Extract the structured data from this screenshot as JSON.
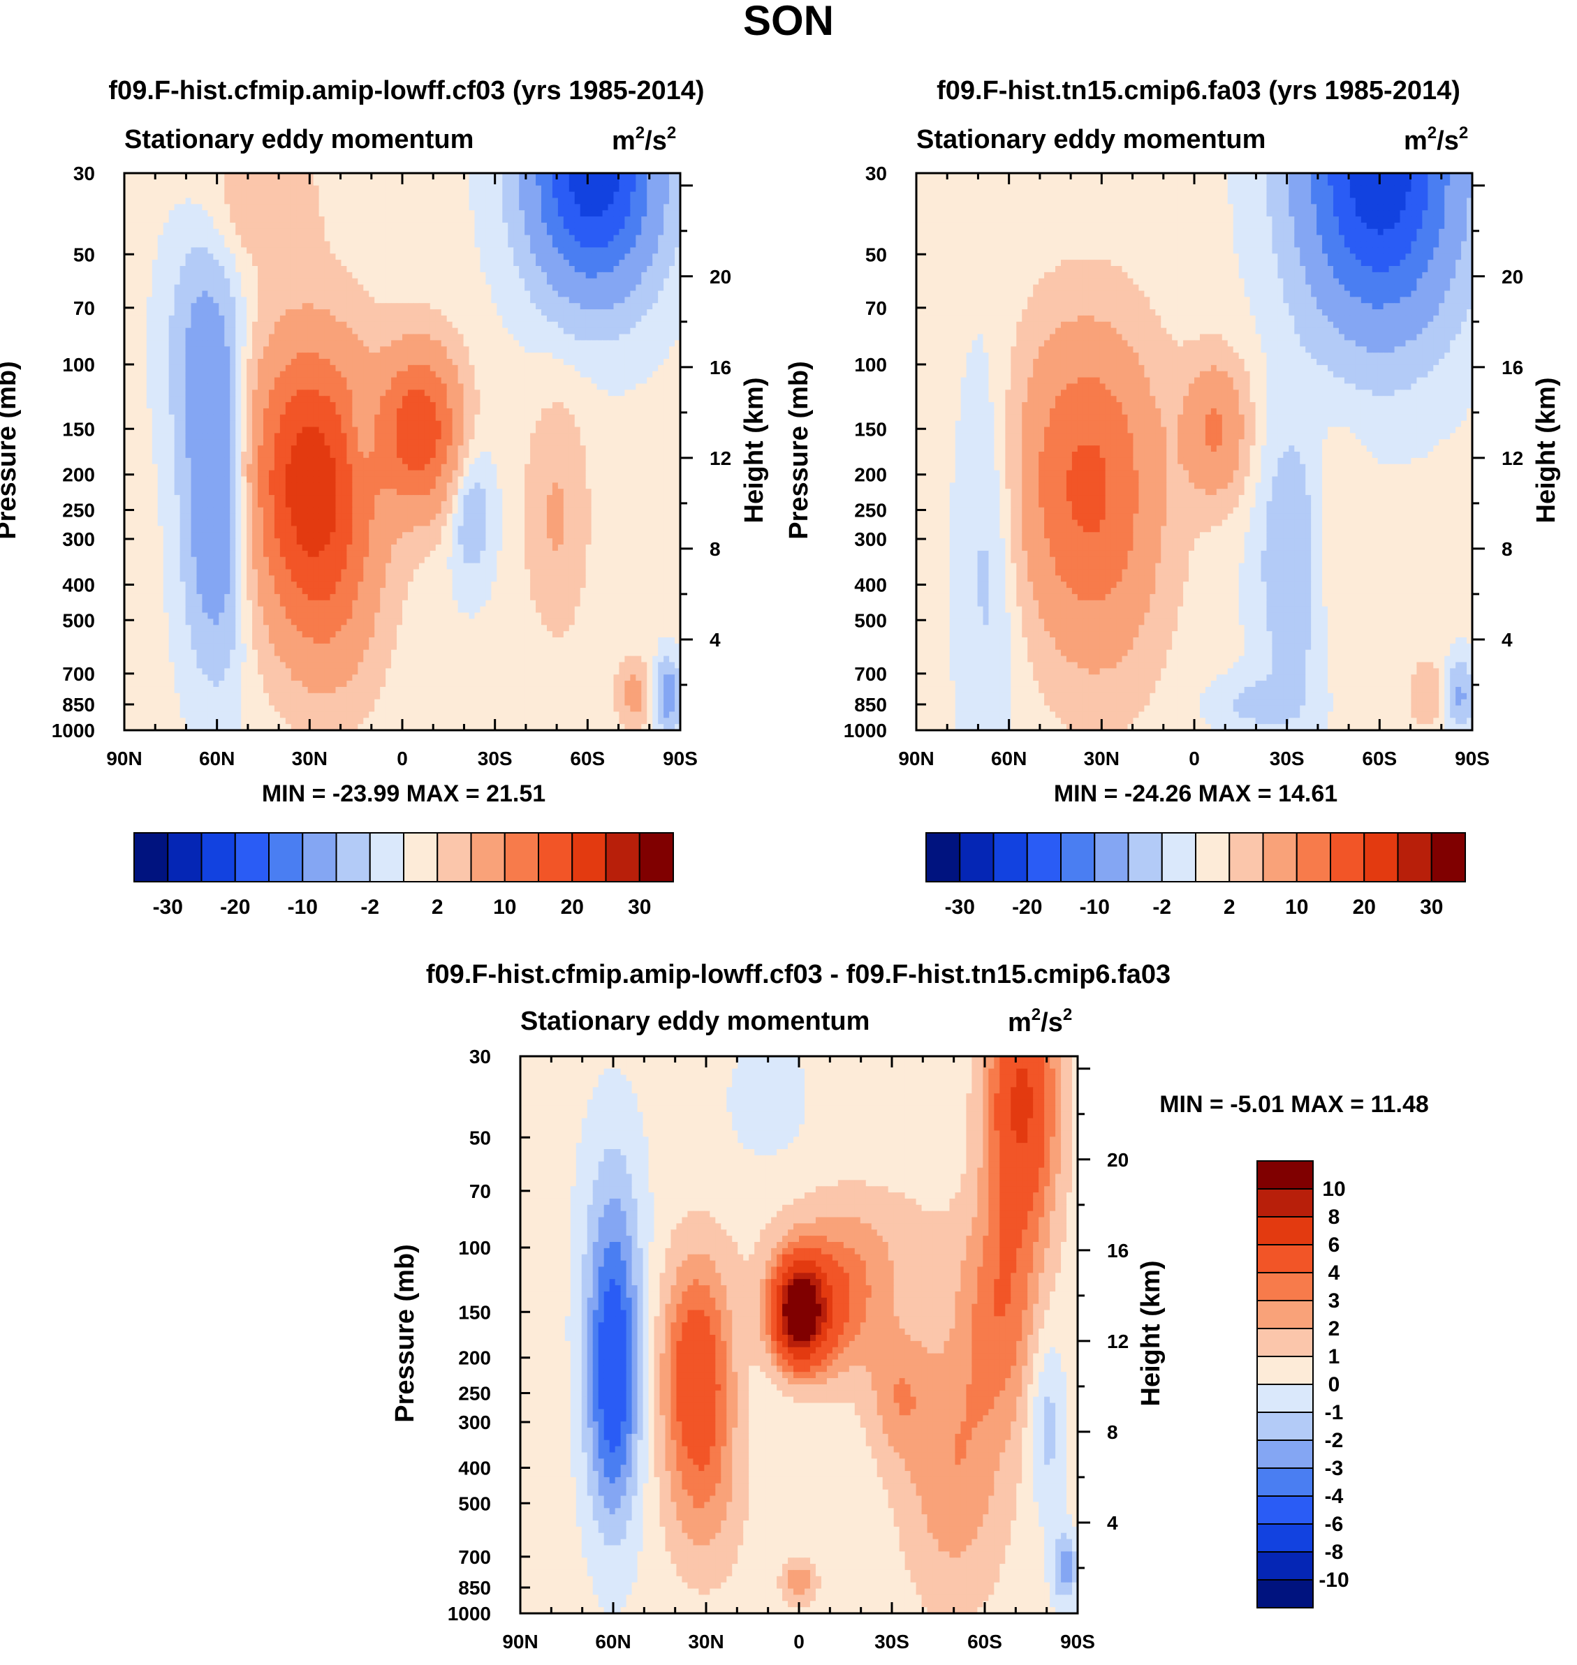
{
  "figure_title": "SON",
  "panel_subtitle": "Stationary eddy momentum",
  "units": {
    "base": "m",
    "sup1": "2",
    "mid": "/s",
    "sup2": "2"
  },
  "colors": {
    "-8": "#00137f",
    "-7": "#0526b5",
    "-6": "#1242e0",
    "-5": "#2a5cf5",
    "-4": "#4a7ef2",
    "-3": "#84a6f3",
    "-2": "#b3cbf7",
    "-1": "#dae8fb",
    "1": "#fdebd8",
    "2": "#fbc6ab",
    "3": "#f9a279",
    "4": "#f77b4b",
    "5": "#f25527",
    "6": "#e33a10",
    "7": "#b81f0a",
    "8": "#800000"
  },
  "chart_data": [
    {
      "id": "p1",
      "type": "contour-fill",
      "title": "f09.F-hist.cfmip.amip-lowff.cf03 (yrs 1985-2014)",
      "subtitle": "Stationary eddy momentum",
      "ylabel": "Pressure (mb)",
      "y2label": "Height (km)",
      "xticks": [
        "90N",
        "60N",
        "30N",
        "0",
        "30S",
        "60S",
        "90S"
      ],
      "xtick_values": [
        90,
        60,
        30,
        0,
        -30,
        -60,
        -90
      ],
      "xlim": [
        90,
        -90
      ],
      "yticks": [
        30,
        50,
        70,
        100,
        150,
        200,
        250,
        300,
        400,
        500,
        700,
        850,
        1000
      ],
      "ylim": [
        30,
        1000
      ],
      "y2ticks": [
        20,
        16,
        12,
        8,
        4
      ],
      "minmax": "MIN = -23.99  MAX =  21.51",
      "min": -23.99,
      "max": 21.51,
      "colorbar_labels": [
        "-30",
        "-20",
        "-10",
        "-2",
        "2",
        "10",
        "20",
        "30"
      ],
      "features": [
        {
          "lat": 60,
          "p": 250,
          "wl": 7,
          "wp": 0.65,
          "a": -11
        },
        {
          "lat": 64,
          "p": 90,
          "wl": 8,
          "wp": 0.5,
          "a": -6
        },
        {
          "lat": 30,
          "p": 200,
          "wl": 14,
          "wp": 0.6,
          "a": 21.5
        },
        {
          "lat": 24,
          "p": 450,
          "wl": 12,
          "wp": 0.5,
          "a": 6
        },
        {
          "lat": -6,
          "p": 150,
          "wl": 9,
          "wp": 0.35,
          "a": 18
        },
        {
          "lat": 13,
          "p": 150,
          "wl": 3,
          "wp": 0.2,
          "a": -4
        },
        {
          "lat": -22,
          "p": 250,
          "wl": 5,
          "wp": 0.3,
          "a": -5
        },
        {
          "lat": -50,
          "p": 260,
          "wl": 7,
          "wp": 0.5,
          "a": 5
        },
        {
          "lat": -62,
          "p": 30,
          "wl": 14,
          "wp": 0.5,
          "a": -24
        },
        {
          "lat": -75,
          "p": 800,
          "wl": 4,
          "wp": 0.15,
          "a": 6
        },
        {
          "lat": -86,
          "p": 800,
          "wl": 3,
          "wp": 0.15,
          "a": -8
        },
        {
          "lat": 45,
          "p": 35,
          "wl": 12,
          "wp": 0.3,
          "a": 4
        }
      ],
      "bias": 0.4
    },
    {
      "id": "p2",
      "type": "contour-fill",
      "title": "f09.F-hist.tn15.cmip6.fa03 (yrs 1985-2014)",
      "subtitle": "Stationary eddy momentum",
      "ylabel": "Pressure (mb)",
      "y2label": "Height (km)",
      "xticks": [
        "90N",
        "60N",
        "30N",
        "0",
        "30S",
        "60S",
        "90S"
      ],
      "xtick_values": [
        90,
        60,
        30,
        0,
        -30,
        -60,
        -90
      ],
      "xlim": [
        90,
        -90
      ],
      "yticks": [
        30,
        50,
        70,
        100,
        150,
        200,
        250,
        300,
        400,
        500,
        700,
        850,
        1000
      ],
      "ylim": [
        30,
        1000
      ],
      "y2ticks": [
        20,
        16,
        12,
        8,
        4
      ],
      "minmax": "MIN = -24.26  MAX =  14.61",
      "min": -24.26,
      "max": 14.61,
      "colorbar_labels": [
        "-30",
        "-20",
        "-10",
        "-2",
        "2",
        "10",
        "20",
        "30"
      ],
      "features": [
        {
          "lat": 66,
          "p": 300,
          "wl": 7,
          "wp": 0.8,
          "a": -4
        },
        {
          "lat": 35,
          "p": 200,
          "wl": 16,
          "wp": 0.65,
          "a": 14.6
        },
        {
          "lat": 30,
          "p": 450,
          "wl": 14,
          "wp": 0.6,
          "a": 3
        },
        {
          "lat": -7,
          "p": 150,
          "wl": 7,
          "wp": 0.3,
          "a": 10
        },
        {
          "lat": -32,
          "p": 350,
          "wl": 8,
          "wp": 0.6,
          "a": -5
        },
        {
          "lat": -45,
          "p": 300,
          "wl": 6,
          "wp": 0.5,
          "a": 2.5
        },
        {
          "lat": -60,
          "p": 30,
          "wl": 17,
          "wp": 0.65,
          "a": -24
        },
        {
          "lat": -75,
          "p": 800,
          "wl": 4,
          "wp": 0.15,
          "a": 4
        },
        {
          "lat": -86,
          "p": 800,
          "wl": 3,
          "wp": 0.15,
          "a": -6
        },
        {
          "lat": -20,
          "p": 850,
          "wl": 10,
          "wp": 0.12,
          "a": -3
        }
      ],
      "bias": 0.4
    },
    {
      "id": "p3",
      "type": "contour-fill",
      "title": "f09.F-hist.cfmip.amip-lowff.cf03 - f09.F-hist.tn15.cmip6.fa03",
      "subtitle": "Stationary eddy momentum",
      "ylabel": "Pressure (mb)",
      "y2label": "Height (km)",
      "xticks": [
        "90N",
        "60N",
        "30N",
        "0",
        "30S",
        "60S",
        "90S"
      ],
      "xtick_values": [
        90,
        60,
        30,
        0,
        -30,
        -60,
        -90
      ],
      "xlim": [
        90,
        -90
      ],
      "yticks": [
        30,
        50,
        70,
        100,
        150,
        200,
        250,
        300,
        400,
        500,
        700,
        850,
        1000
      ],
      "ylim": [
        30,
        1000
      ],
      "y2ticks": [
        20,
        16,
        12,
        8,
        4
      ],
      "minmax": "MIN =  -5.01  MAX =  11.48",
      "min": -5.01,
      "max": 11.48,
      "colorbar_labels": [
        "10",
        "8",
        "6",
        "4",
        "3",
        "2",
        "1",
        "0",
        "-1",
        "-2",
        "-3",
        "-4",
        "-6",
        "-8",
        "-10"
      ],
      "features": [
        {
          "lat": 60,
          "p": 250,
          "wl": 6,
          "wp": 0.6,
          "a": -5
        },
        {
          "lat": 60,
          "p": 100,
          "wl": 7,
          "wp": 0.6,
          "a": -2
        },
        {
          "lat": 33,
          "p": 220,
          "wl": 8,
          "wp": 0.5,
          "a": 5
        },
        {
          "lat": 30,
          "p": 500,
          "wl": 9,
          "wp": 0.4,
          "a": 1.5
        },
        {
          "lat": 0,
          "p": 150,
          "wl": 6,
          "wp": 0.22,
          "a": 11.5
        },
        {
          "lat": -12,
          "p": 150,
          "wl": 10,
          "wp": 0.3,
          "a": 3
        },
        {
          "lat": -18,
          "p": 100,
          "wl": 20,
          "wp": 0.3,
          "a": 1.5
        },
        {
          "lat": -32,
          "p": 250,
          "wl": 7,
          "wp": 0.3,
          "a": 2
        },
        {
          "lat": -50,
          "p": 400,
          "wl": 12,
          "wp": 0.6,
          "a": 2.5
        },
        {
          "lat": -72,
          "p": 40,
          "wl": 8,
          "wp": 0.6,
          "a": 6
        },
        {
          "lat": -65,
          "p": 150,
          "wl": 9,
          "wp": 0.5,
          "a": 3
        },
        {
          "lat": 10,
          "p": 40,
          "wl": 10,
          "wp": 0.3,
          "a": -0.8
        },
        {
          "lat": -80,
          "p": 300,
          "wl": 4,
          "wp": 0.4,
          "a": -2
        },
        {
          "lat": 0,
          "p": 820,
          "wl": 4,
          "wp": 0.1,
          "a": 2.5
        },
        {
          "lat": -86,
          "p": 750,
          "wl": 3,
          "wp": 0.15,
          "a": -3
        }
      ],
      "bias": 0.35
    }
  ]
}
